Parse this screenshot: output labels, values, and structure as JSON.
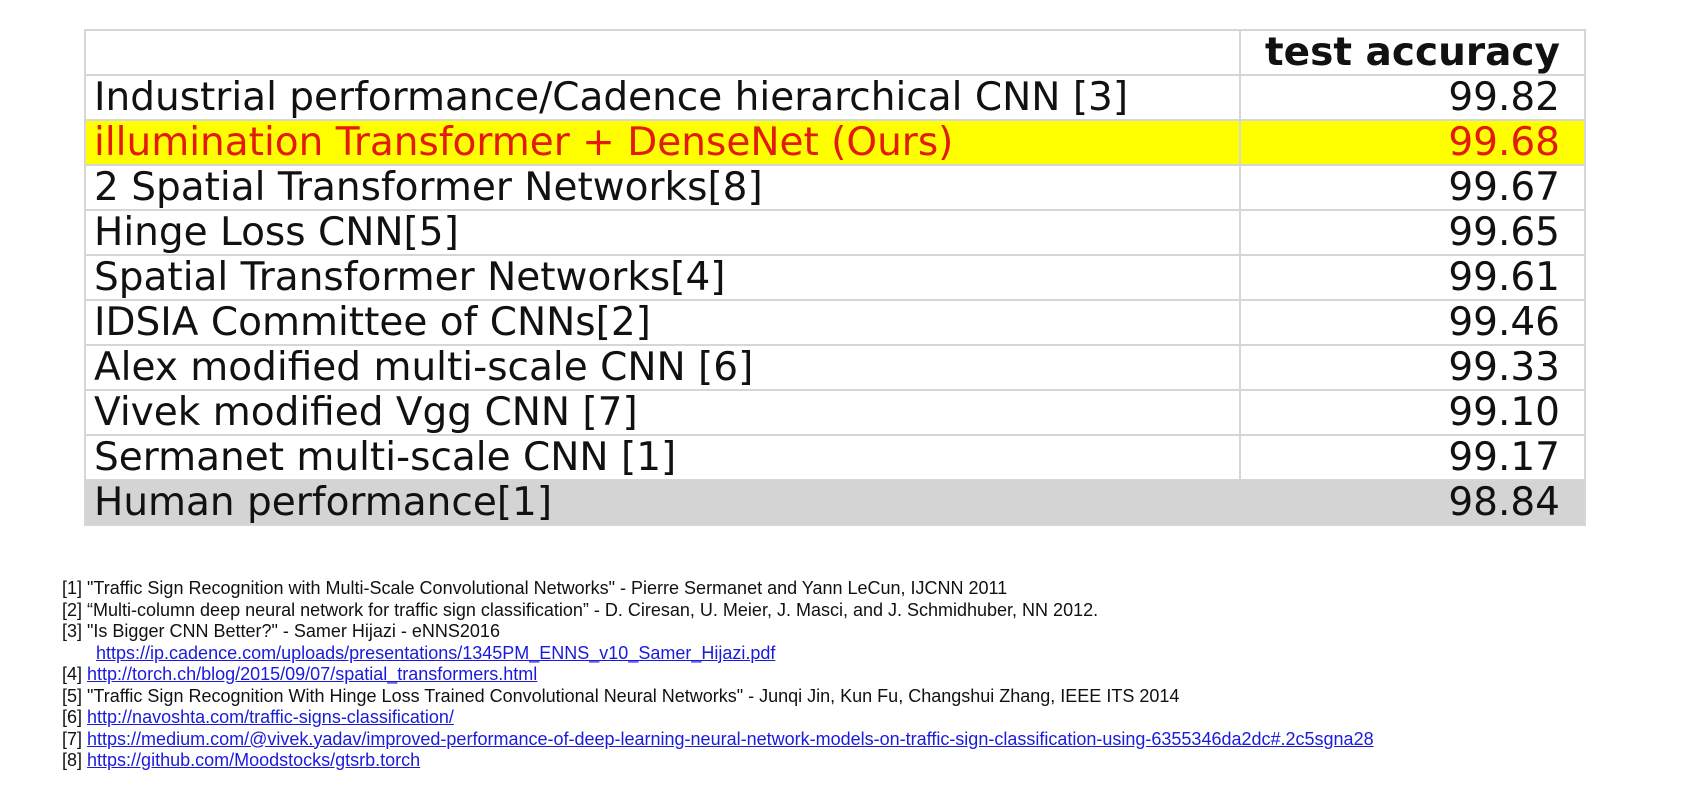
{
  "table": {
    "header": {
      "method": "",
      "accuracy": "test accuracy"
    },
    "rows": [
      {
        "method": "Industrial performance/Cadence  hierarchical CNN [3]",
        "accuracy": "99.82"
      },
      {
        "method": "illumination Transformer + DenseNet (Ours)",
        "accuracy": "99.68"
      },
      {
        "method": "2 Spatial Transformer Networks[8]",
        "accuracy": "99.67"
      },
      {
        "method": "Hinge Loss CNN[5]",
        "accuracy": "99.65"
      },
      {
        "method": "Spatial Transformer Networks[4]",
        "accuracy": "99.61"
      },
      {
        "method": "IDSIA Committee of CNNs[2]",
        "accuracy": "99.46"
      },
      {
        "method": "Alex modified multi-scale CNN [6]",
        "accuracy": "99.33"
      },
      {
        "method": "Vivek modified Vgg CNN [7]",
        "accuracy": "99.10"
      },
      {
        "method": "Sermanet multi-scale CNN [1]",
        "accuracy": "99.17"
      },
      {
        "method": "Human performance[1]",
        "accuracy": "98.84"
      }
    ],
    "highlight_colors": {
      "ours_bg": "#ffff00",
      "ours_text": "#e31b0e",
      "human_bg": "#d4d4d4"
    }
  },
  "references": {
    "r1": {
      "num": "[1]",
      "text": "\"Traffic Sign Recognition with Multi-Scale Convolutional Networks\" - Pierre Sermanet and Yann LeCun, IJCNN 2011"
    },
    "r2": {
      "num": "[2]",
      "text": "“Multi-column deep neural network for traffic sign classification” - D. Ciresan, U. Meier, J. Masci, and J. Schmidhuber,  NN 2012."
    },
    "r3": {
      "num": "[3]",
      "text": "\"Is Bigger CNN Better?\" - Samer Hijazi - eNNS2016",
      "link": "https://ip.cadence.com/uploads/presentations/1345PM_ENNS_v10_Samer_Hijazi.pdf"
    },
    "r4": {
      "num": "[4]",
      "link": "http://torch.ch/blog/2015/09/07/spatial_transformers.html"
    },
    "r5": {
      "num": "[5]",
      "text": "\"Traffic Sign Recognition With Hinge Loss Trained Convolutional Neural Networks\" -  Junqi Jin, Kun Fu, Changshui Zhang, IEEE ITS 2014"
    },
    "r6": {
      "num": "[6]",
      "link": "http://navoshta.com/traffic-signs-classification/"
    },
    "r7": {
      "num": "[7]",
      "link": "https://medium.com/@vivek.yadav/improved-performance-of-deep-learning-neural-network-models-on-traffic-sign-classification-using-6355346da2dc#.2c5sgna28"
    },
    "r8": {
      "num": "[8]",
      "link": "https://github.com/Moodstocks/gtsrb.torch"
    },
    "link_color": "#1a1adc"
  }
}
